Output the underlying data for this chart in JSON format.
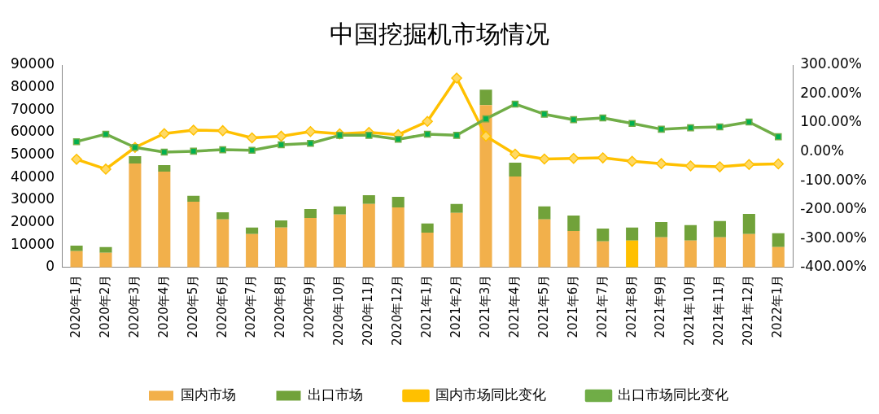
{
  "chart_data": {
    "type": "bar",
    "title": "中国挖掘机市场情况",
    "stacked": true,
    "categories": [
      "2020年1月",
      "2020年2月",
      "2020年3月",
      "2020年4月",
      "2020年5月",
      "2020年6月",
      "2020年7月",
      "2020年8月",
      "2020年9月",
      "2020年10月",
      "2020年11月",
      "2020年12月",
      "2021年1月",
      "2021年2月",
      "2021年3月",
      "2021年4月",
      "2021年5月",
      "2021年6月",
      "2021年7月",
      "2021年8月",
      "2021年9月",
      "2021年10月",
      "2021年11月",
      "2021年12月",
      "2022年1月"
    ],
    "series": [
      {
        "name": "国内市场",
        "color": "#f2b04b",
        "colors": [
          "#f2b04b",
          "#f2b04b",
          "#f2b04b",
          "#f2b04b",
          "#f2b04b",
          "#f2b04b",
          "#f2b04b",
          "#f2b04b",
          "#f2b04b",
          "#f2b04b",
          "#f2b04b",
          "#f2b04b",
          "#f2b04b",
          "#f2b04b",
          "#f2b04b",
          "#f2b04b",
          "#f2b04b",
          "#f2b04b",
          "#f2b04b",
          "#ffc000",
          "#f2b04b",
          "#f2b04b",
          "#f2b04b",
          "#f2b04b",
          "#f2b04b"
        ],
        "values": [
          7200,
          6500,
          46200,
          42600,
          29200,
          21300,
          14800,
          17700,
          22000,
          23500,
          28200,
          26700,
          15500,
          24200,
          72200,
          40400,
          21300,
          16200,
          11600,
          11900,
          13400,
          11900,
          13400,
          14800,
          9000
        ]
      },
      {
        "name": "出口市场",
        "color": "#71a23a",
        "values": [
          2500,
          2500,
          3300,
          2900,
          2600,
          3200,
          2900,
          3200,
          4000,
          3600,
          3900,
          4700,
          4000,
          4000,
          6900,
          6200,
          5800,
          6900,
          5700,
          5800,
          6800,
          6900,
          7200,
          9000,
          6200
        ]
      },
      {
        "name": "国内市场同比变化",
        "type": "line",
        "axis": "y2",
        "color": "#ffc000",
        "marker": "diamond",
        "values": [
          -26,
          -60,
          15,
          63,
          75,
          73,
          48,
          54,
          70,
          62,
          67,
          59,
          105,
          255,
          54,
          -8,
          -25,
          -23,
          -21,
          -33,
          -41,
          -49,
          -52,
          -44,
          -42
        ]
      },
      {
        "name": "出口市场同比变化",
        "type": "line",
        "axis": "y2",
        "color": "#70ad47",
        "marker": "square",
        "values": [
          35,
          61,
          15,
          -1,
          2,
          7,
          5,
          24,
          29,
          57,
          57,
          43,
          61,
          57,
          114,
          165,
          130,
          111,
          117,
          98,
          78,
          83,
          86,
          103,
          52
        ]
      }
    ],
    "ylim": [
      0,
      90000
    ],
    "yticks": [
      0,
      10000,
      20000,
      30000,
      40000,
      50000,
      60000,
      70000,
      80000,
      90000
    ],
    "y2lim": [
      -400,
      300
    ],
    "y2ticks": [
      {
        "value": -400,
        "label": "-400.00%"
      },
      {
        "value": -300,
        "label": "-300.00%"
      },
      {
        "value": -200,
        "label": "-200.00%"
      },
      {
        "value": -100,
        "label": "-100.00%"
      },
      {
        "value": 0,
        "label": "0.00%"
      },
      {
        "value": 100,
        "label": "100.00%"
      },
      {
        "value": 200,
        "label": "200.00%"
      },
      {
        "value": 300,
        "label": "300.00%"
      }
    ],
    "legend": "bottom",
    "grid": false
  }
}
